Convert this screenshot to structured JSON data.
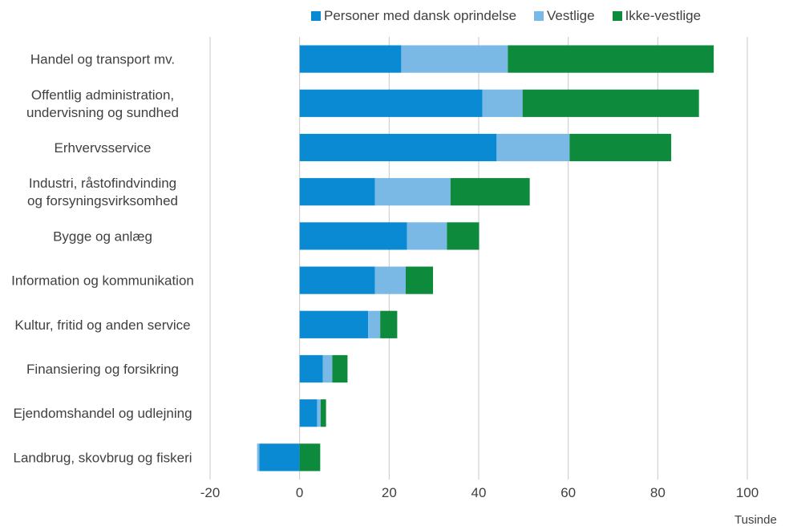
{
  "chart_data": {
    "type": "bar",
    "orientation": "horizontal",
    "stacked": true,
    "categories": [
      "Handel og transport mv.",
      "Offentlig administration, undervisning og sundhed",
      "Erhvervsservice",
      "Industri, råstofindvinding og forsyningsvirksomhed",
      "Bygge og anlæg",
      "Information og kommunikation",
      "Kultur, fritid og anden service",
      "Finansiering og forsikring",
      "Ejendomshandel og udlejning",
      "Landbrug, skovbrug og fiskeri"
    ],
    "category_lines": [
      [
        "Handel og transport mv."
      ],
      [
        "Offentlig administration,",
        "undervisning og sundhed"
      ],
      [
        "Erhvervsservice"
      ],
      [
        "Industri, råstofindvinding",
        "og forsyningsvirksomhed"
      ],
      [
        "Bygge og anlæg"
      ],
      [
        "Information og kommunikation"
      ],
      [
        "Kultur, fritid og anden service"
      ],
      [
        "Finansiering og forsikring"
      ],
      [
        "Ejendomshandel og udlejning"
      ],
      [
        "Landbrug, skovbrug og fiskeri"
      ]
    ],
    "series": [
      {
        "name": "Personer med dansk oprindelse",
        "color": "#0a8ad2",
        "values": [
          22.7,
          40.8,
          44.0,
          16.8,
          24.0,
          16.8,
          15.3,
          5.2,
          3.9,
          -9.0
        ]
      },
      {
        "name": "Vestlige",
        "color": "#7ab8e6",
        "values": [
          23.8,
          9.0,
          16.3,
          16.9,
          8.9,
          6.9,
          2.7,
          2.1,
          0.8,
          -0.5
        ]
      },
      {
        "name": "Ikke-vestlige",
        "color": "#0e8a3c",
        "values": [
          46.0,
          39.4,
          22.7,
          17.7,
          7.2,
          6.1,
          3.8,
          3.4,
          1.2,
          4.6
        ]
      }
    ],
    "xlim": [
      -20,
      100
    ],
    "xticks": [
      "-20",
      "0",
      "20",
      "40",
      "60",
      "80",
      "100"
    ],
    "unit_label": "Tusinde",
    "grid": true,
    "legend_position": "top"
  }
}
